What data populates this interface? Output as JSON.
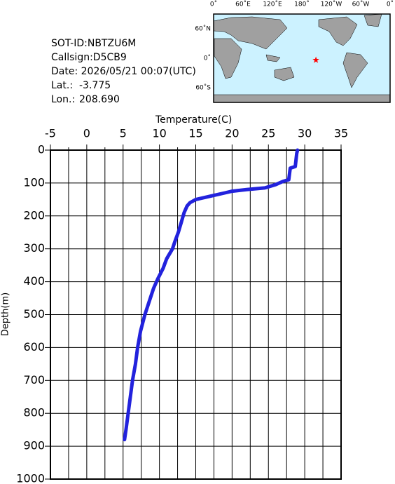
{
  "info": {
    "lines": [
      {
        "label": "SOT-ID:NBTZU6M"
      },
      {
        "label": "Callsign:D5CB9"
      },
      {
        "label": "Date:  2026/05/21 00:07(UTC)"
      },
      {
        "label": "Lat.:",
        "value": -3.775
      },
      {
        "label": "Lon.:",
        "value": {
          "value": 208.69,
          "label": "208.690"
        }
      }
    ]
  },
  "map": {
    "lon_labels": [
      "0˚",
      "60˚E",
      "120˚E",
      "180˚",
      "120˚W",
      "60˚W",
      "0˚"
    ],
    "lat_labels": [
      "60˚N",
      "0˚",
      "60˚S"
    ],
    "marker_color": "#ff0000"
  },
  "chart_data": {
    "type": "line",
    "xlabel": "Temperature(C)",
    "ylabel": "Depth(m)",
    "color": "#2222dd",
    "x": [
      29.0,
      28.9,
      28.7,
      28.0,
      27.8,
      27.0,
      26.0,
      24.5,
      22.0,
      20.0,
      19.0,
      17.0,
      15.0,
      14.2,
      13.8,
      13.4,
      13.0,
      12.6,
      12.1,
      11.8,
      11.0,
      10.5,
      9.8,
      9.2,
      8.6,
      8.0,
      7.4,
      7.0,
      6.7,
      6.3,
      6.0,
      5.7,
      5.4,
      5.2
    ],
    "values": [
      0,
      10,
      50,
      55,
      90,
      95,
      105,
      115,
      120,
      125,
      130,
      140,
      150,
      160,
      170,
      190,
      220,
      250,
      280,
      300,
      330,
      360,
      390,
      420,
      460,
      500,
      550,
      600,
      650,
      700,
      750,
      800,
      850,
      880
    ],
    "xlim": [
      -5,
      35
    ],
    "xticks": [
      -5,
      0,
      5,
      10,
      15,
      20,
      25,
      30,
      35
    ],
    "xminorticks": [
      -2.5,
      2.5,
      7.5,
      12.5,
      17.5,
      22.5,
      27.5,
      32.5
    ],
    "ylim": [
      0,
      1000
    ],
    "yticks": [
      0,
      100,
      200,
      300,
      400,
      500,
      600,
      700,
      800,
      900,
      1000
    ],
    "y_inverted": true,
    "grid": true
  }
}
